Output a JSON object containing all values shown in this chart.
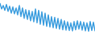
{
  "values": [
    88,
    72,
    82,
    68,
    85,
    65,
    80,
    60,
    78,
    58,
    75,
    55,
    82,
    50,
    75,
    45,
    70,
    42,
    68,
    38,
    65,
    35,
    72,
    32,
    68,
    28,
    64,
    25,
    60,
    22,
    55,
    20,
    50,
    18,
    48,
    16,
    45,
    14,
    42,
    12,
    38,
    11,
    35,
    10,
    32,
    9,
    36,
    12,
    38,
    14,
    36,
    11,
    34,
    9,
    32,
    8,
    36,
    10,
    34,
    9
  ],
  "line_color": "#3399dd",
  "fill_color": "#7dc7f0",
  "background_color": "#ffffff",
  "ylim_min": 0,
  "ylim_max": 100
}
